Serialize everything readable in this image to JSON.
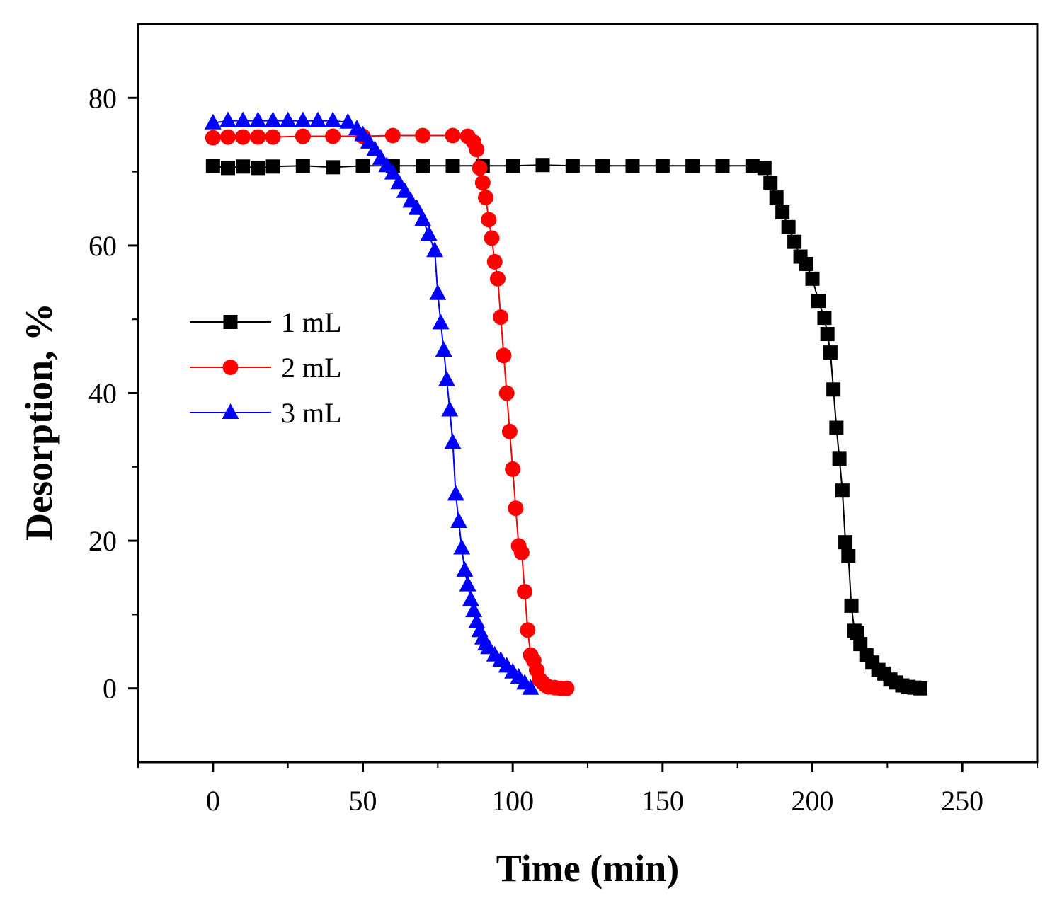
{
  "chart_data": {
    "type": "line",
    "title": "",
    "xlabel": "Time (min)",
    "ylabel": "Desorption, %",
    "xlim": [
      -25,
      275
    ],
    "ylim": [
      -10,
      90
    ],
    "xticks": [
      0,
      50,
      100,
      150,
      200,
      250
    ],
    "yticks": [
      0,
      20,
      40,
      60,
      80
    ],
    "grid": false,
    "legend_position": "center-left",
    "series": [
      {
        "name": "1 mL",
        "marker": "square",
        "color": "#000000",
        "x": [
          0,
          5,
          10,
          15,
          20,
          30,
          40,
          50,
          60,
          70,
          80,
          90,
          100,
          110,
          120,
          130,
          140,
          150,
          160,
          170,
          180,
          184,
          186,
          188,
          190,
          192,
          194,
          196,
          198,
          200,
          202,
          204,
          205,
          206,
          207,
          208,
          209,
          210,
          211,
          212,
          213,
          214,
          215,
          216,
          218,
          220,
          222,
          224,
          226,
          228,
          230,
          232,
          234,
          236
        ],
        "y": [
          70.8,
          70.5,
          70.7,
          70.5,
          70.7,
          70.8,
          70.6,
          70.8,
          70.8,
          70.8,
          70.8,
          70.8,
          70.8,
          70.9,
          70.8,
          70.8,
          70.8,
          70.8,
          70.8,
          70.8,
          70.8,
          70.5,
          68.5,
          66.5,
          64.5,
          62.5,
          60.5,
          58.5,
          57.5,
          55.5,
          52.5,
          50.2,
          48.0,
          45.5,
          40.5,
          35.3,
          31.1,
          26.8,
          19.8,
          17.9,
          11.2,
          7.8,
          7.5,
          6.0,
          4.5,
          3.5,
          2.5,
          2.0,
          1.2,
          0.8,
          0.4,
          0.2,
          0.1,
          0.0
        ]
      },
      {
        "name": "2 mL",
        "marker": "circle",
        "color": "#ff0000",
        "x": [
          0,
          5,
          10,
          15,
          20,
          30,
          40,
          50,
          60,
          70,
          80,
          85,
          87,
          88,
          89,
          90,
          91,
          92,
          93,
          94,
          95,
          96,
          97,
          98,
          99,
          100,
          101,
          102,
          103,
          104,
          105,
          106,
          107,
          108,
          109,
          110,
          111,
          112,
          114,
          116,
          118
        ],
        "y": [
          74.6,
          74.7,
          74.7,
          74.7,
          74.7,
          74.8,
          74.8,
          74.8,
          74.9,
          74.9,
          74.9,
          74.8,
          74.0,
          73.0,
          70.5,
          68.5,
          66.5,
          63.5,
          61.0,
          57.8,
          55.5,
          50.3,
          45.1,
          40.0,
          34.8,
          29.7,
          24.4,
          19.3,
          18.4,
          13.1,
          7.9,
          4.5,
          3.8,
          2.5,
          1.2,
          0.8,
          0.4,
          0.2,
          0.1,
          0.0,
          0.0
        ]
      },
      {
        "name": "3 mL",
        "marker": "triangle",
        "color": "#0000ff",
        "x": [
          0,
          5,
          10,
          15,
          20,
          25,
          30,
          35,
          40,
          45,
          48,
          50,
          52,
          54,
          56,
          58,
          60,
          62,
          64,
          66,
          68,
          70,
          72,
          74,
          75,
          76,
          77,
          78,
          79,
          80,
          81,
          82,
          83,
          84,
          85,
          86,
          87,
          88,
          89,
          90,
          91,
          92,
          94,
          96,
          98,
          100,
          102,
          104,
          106
        ],
        "y": [
          76.6,
          76.9,
          76.9,
          76.9,
          76.9,
          76.9,
          76.9,
          76.9,
          76.9,
          76.7,
          75.8,
          75.0,
          74.0,
          73.0,
          71.8,
          70.8,
          69.8,
          68.5,
          67.3,
          66.0,
          65.0,
          63.5,
          61.5,
          59.3,
          53.5,
          49.5,
          45.8,
          41.8,
          37.7,
          33.3,
          26.3,
          22.6,
          19.0,
          16.0,
          14.0,
          12.0,
          10.5,
          9.0,
          7.8,
          6.8,
          6.0,
          5.5,
          4.5,
          3.8,
          3.0,
          2.2,
          1.5,
          0.7,
          0.0
        ]
      }
    ]
  }
}
